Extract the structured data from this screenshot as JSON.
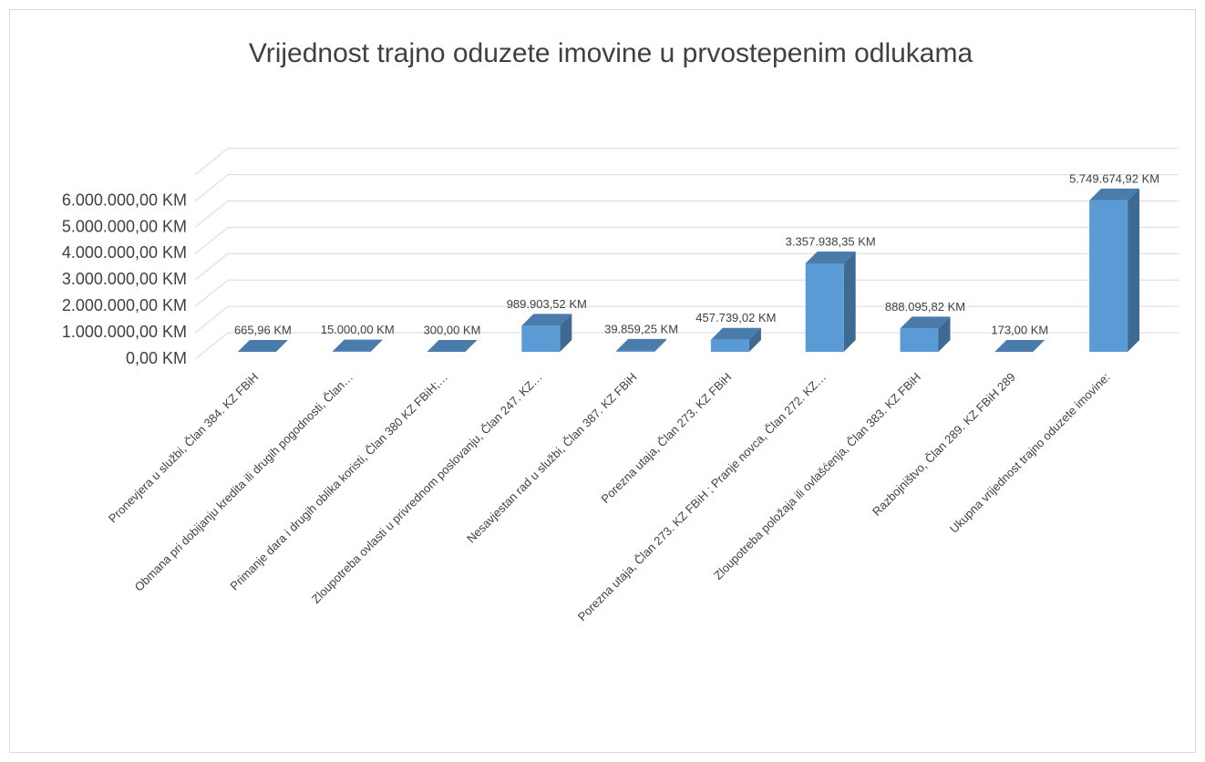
{
  "chart_data": {
    "type": "bar3d",
    "title": "Vrijednost trajno oduzete imovine u prvostepenim odlukama",
    "categories": [
      "Pronevjera u službi, Član 384. KZ FBiH",
      "Obmana pri dobijanju kredita ili drugih pogodnosti, Član…",
      "Primanje dara i drugih oblika koristi, Član 380 KZ FBiH;…",
      "Zloupotreba ovlasti u privrednom poslovanju, Član 247. KZ…",
      "Nesavjestan rad u službi, Član 387. KZ FBiH",
      "Porezna utaja, Član 273. KZ FBiH",
      "Porezna utaja, Član 273. KZ FBiH ; Pranje novca, Član 272. KZ…",
      "Zloupotreba položaja ili ovlašćenja, Član 383. KZ FBiH",
      "Razbojništvo, Član 289. KZ FBiH 289",
      "Ukupna vrijednost trajno oduzete imovine:"
    ],
    "values": [
      665.96,
      15000,
      300,
      989903.52,
      39859.25,
      457739.02,
      3357938.35,
      888095.82,
      173,
      5749674.92
    ],
    "value_labels": [
      "665,96 KM",
      "15.000,00 KM",
      "300,00 KM",
      "989.903,52 KM",
      "39.859,25 KM",
      "457.739,02 KM",
      "3.357.938,35 KM",
      "888.095,82 KM",
      "173,00 KM",
      "5.749.674,92 KM"
    ],
    "color": "#5b9bd5",
    "ylim": [
      0,
      7000000
    ],
    "yticks": [
      {
        "value": 0,
        "label": "0,00 KM"
      },
      {
        "value": 1000000,
        "label": "1.000.000,00 KM"
      },
      {
        "value": 2000000,
        "label": "2.000.000,00 KM"
      },
      {
        "value": 3000000,
        "label": "3.000.000,00 KM"
      },
      {
        "value": 4000000,
        "label": "4.000.000,00 KM"
      },
      {
        "value": 5000000,
        "label": "5.000.000,00 KM"
      },
      {
        "value": 6000000,
        "label": "6.000.000,00 KM"
      }
    ],
    "grid": true
  }
}
